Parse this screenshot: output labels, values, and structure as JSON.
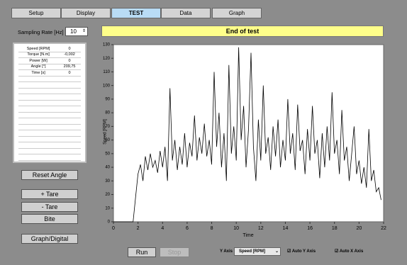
{
  "tabs": [
    "Setup",
    "Display",
    "TEST",
    "Data",
    "Graph"
  ],
  "sampling": {
    "label": "Sampling Rate [Hz]",
    "value": 10
  },
  "status": "End of test",
  "readings": [
    [
      "Speed [RPM]",
      "0"
    ],
    [
      "Torque [N.m]",
      "-0,002"
    ],
    [
      "Power [W]",
      "0"
    ],
    [
      "Angle [°]",
      "209,75"
    ],
    [
      "Time [s]",
      "0"
    ]
  ],
  "buttons": {
    "reset": "Reset Angle",
    "tare_plus": "+ Tare",
    "tare_minus": "- Tare",
    "bite": "Bite",
    "graph_digital": "Graph/Digital",
    "run": "Run",
    "stop": "Stop"
  },
  "y_axis_select": {
    "label": "Y Axis",
    "value": "Speed [RPM]"
  },
  "checkboxes": [
    "Auto Y Axis",
    "Auto X Axis"
  ],
  "chart_data": {
    "type": "line",
    "xlabel": "Time",
    "ylabel": "Speed [RPM]",
    "color": "#000000",
    "xlim": [
      0,
      22
    ],
    "xticks": [
      0,
      2,
      4,
      6,
      8,
      10,
      12,
      14,
      16,
      18,
      20,
      22
    ],
    "ylim": [
      0,
      130
    ],
    "yticks": [
      0,
      10,
      20,
      30,
      40,
      50,
      60,
      70,
      80,
      90,
      100,
      110,
      120,
      130
    ],
    "x": [
      0,
      0.2,
      0.4,
      0.6,
      0.8,
      1.0,
      1.2,
      1.4,
      1.6,
      1.8,
      2.0,
      2.2,
      2.4,
      2.6,
      2.8,
      3.0,
      3.2,
      3.4,
      3.6,
      3.8,
      4.0,
      4.2,
      4.4,
      4.6,
      4.8,
      5.0,
      5.2,
      5.4,
      5.6,
      5.8,
      6.0,
      6.2,
      6.4,
      6.6,
      6.8,
      7.0,
      7.2,
      7.4,
      7.6,
      7.8,
      8.0,
      8.2,
      8.4,
      8.6,
      8.8,
      9.0,
      9.2,
      9.4,
      9.6,
      9.8,
      10.0,
      10.2,
      10.4,
      10.6,
      10.8,
      11.0,
      11.2,
      11.4,
      11.6,
      11.8,
      12.0,
      12.2,
      12.4,
      12.6,
      12.8,
      13.0,
      13.2,
      13.4,
      13.6,
      13.8,
      14.0,
      14.2,
      14.4,
      14.6,
      14.8,
      15.0,
      15.2,
      15.4,
      15.6,
      15.8,
      16.0,
      16.2,
      16.4,
      16.6,
      16.8,
      17.0,
      17.2,
      17.4,
      17.6,
      17.8,
      18.0,
      18.2,
      18.4,
      18.6,
      18.8,
      19.0,
      19.2,
      19.4,
      19.6,
      19.8,
      20.0,
      20.2,
      20.4,
      20.6,
      20.8,
      21.0,
      21.2,
      21.4,
      21.6,
      21.8
    ],
    "values": [
      0,
      0,
      0,
      0,
      0,
      0,
      0,
      0,
      0,
      18,
      35,
      42,
      30,
      48,
      38,
      50,
      40,
      45,
      36,
      52,
      40,
      55,
      30,
      98,
      45,
      60,
      38,
      55,
      42,
      65,
      40,
      58,
      48,
      78,
      45,
      62,
      50,
      72,
      48,
      60,
      42,
      110,
      55,
      80,
      40,
      65,
      30,
      115,
      50,
      70,
      45,
      128,
      60,
      85,
      40,
      68,
      124,
      55,
      30,
      75,
      45,
      100,
      50,
      62,
      38,
      70,
      48,
      75,
      40,
      60,
      45,
      90,
      50,
      65,
      38,
      86,
      52,
      60,
      35,
      68,
      45,
      85,
      50,
      60,
      32,
      65,
      40,
      70,
      45,
      95,
      50,
      60,
      35,
      82,
      45,
      55,
      30,
      50,
      70,
      35,
      45,
      28,
      40,
      25,
      68,
      30,
      38,
      22,
      25,
      16
    ]
  }
}
